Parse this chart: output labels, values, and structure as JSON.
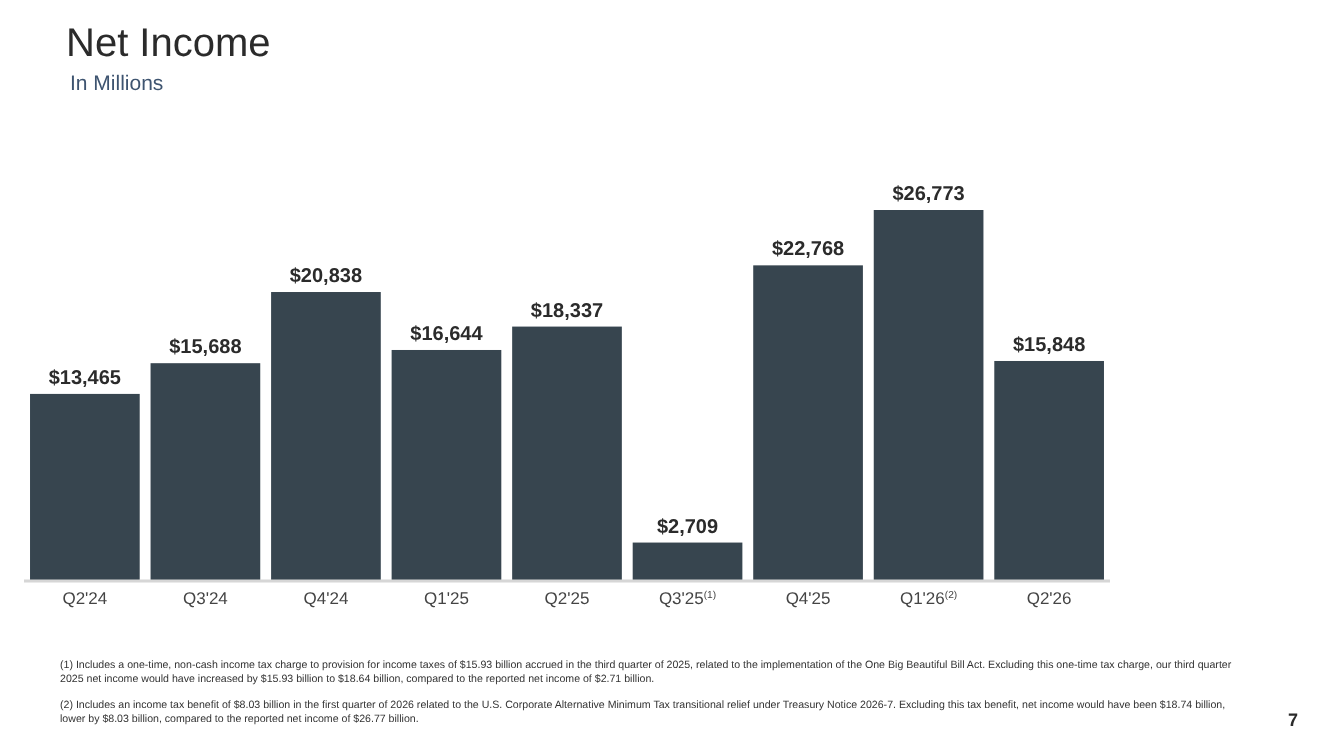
{
  "chart_data": {
    "type": "bar",
    "title": "Net Income",
    "subtitle": "In Millions",
    "categories": [
      "Q2'24",
      "Q3'24",
      "Q4'24",
      "Q1'25",
      "Q2'25",
      "Q3'25$^{(1)}$",
      "Q4'25",
      "Q1'26$^{(2)}$",
      "Q2'26"
    ],
    "values": [
      13465,
      15688,
      20838,
      16644,
      18337,
      2709,
      22768,
      26773,
      15848
    ],
    "value_labels": [
      "$13,465",
      "$15,688",
      "$20,838",
      "$16,644",
      "$18,337",
      "$2,709",
      "$22,768",
      "$26,773",
      "$15,848"
    ],
    "color": "#37454f",
    "annotations": [
      "(1) Includes a one-time, non-cash income tax charge to provision for income taxes of $15.93 billion accrued in the third quarter of 2025, related to the implementation of the One Big Beautiful Bill Act. Excluding this one-time tax charge, our third quarter 2025 net income would have increased by $15.93 billion to $18.64 billion, compared to the reported net income of $2.71 billion.",
      "(2) Includes an income tax benefit of $8.03 billion in the first quarter of 2026 related to the U.S. Corporate Alternative Minimum Tax transitional relief under Treasury Notice 2026-7. Excluding this tax benefit, net income would have been $18.74 billion, lower by $8.03 billion, compared to the reported net income of $26.77 billion.",
      "7"
    ]
  }
}
